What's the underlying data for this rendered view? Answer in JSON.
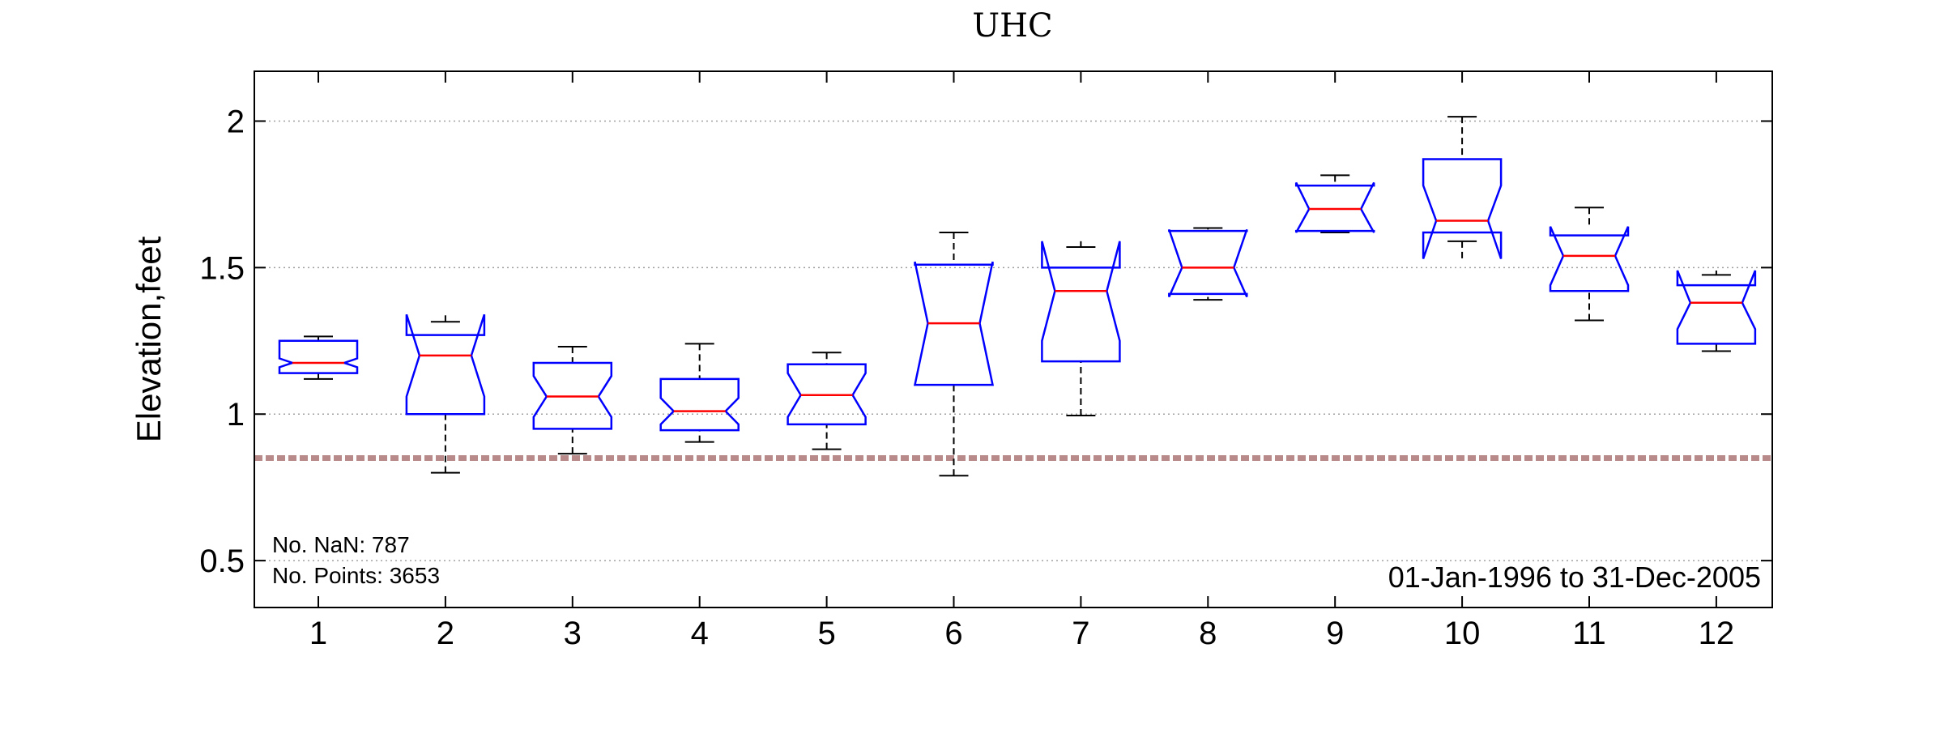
{
  "chart_data": {
    "type": "boxplot",
    "title": "UHC",
    "xlabel": "",
    "ylabel": "Elevation,feet",
    "ylim": [
      0.34,
      2.17
    ],
    "yticks": [
      "0.5",
      "1",
      "1.5",
      "2"
    ],
    "ytick_values": [
      0.5,
      1,
      1.5,
      2
    ],
    "categories": [
      "1",
      "2",
      "3",
      "4",
      "5",
      "6",
      "7",
      "8",
      "9",
      "10",
      "11",
      "12"
    ],
    "boxes": [
      {
        "month": "1",
        "whisker_low": 1.12,
        "q1": 1.14,
        "median": 1.175,
        "q3": 1.25,
        "whisker_high": 1.265,
        "notch_low": 1.16,
        "notch_high": 1.19
      },
      {
        "month": "2",
        "whisker_low": 0.8,
        "q1": 1.0,
        "median": 1.2,
        "q3": 1.27,
        "whisker_high": 1.315,
        "notch_low": 1.06,
        "notch_high": 1.34
      },
      {
        "month": "3",
        "whisker_low": 0.865,
        "q1": 0.95,
        "median": 1.06,
        "q3": 1.175,
        "whisker_high": 1.23,
        "notch_low": 0.99,
        "notch_high": 1.13
      },
      {
        "month": "4",
        "whisker_low": 0.905,
        "q1": 0.945,
        "median": 1.01,
        "q3": 1.12,
        "whisker_high": 1.24,
        "notch_low": 0.965,
        "notch_high": 1.055
      },
      {
        "month": "5",
        "whisker_low": 0.88,
        "q1": 0.965,
        "median": 1.065,
        "q3": 1.17,
        "whisker_high": 1.21,
        "notch_low": 0.99,
        "notch_high": 1.14
      },
      {
        "month": "6",
        "whisker_low": 0.79,
        "q1": 1.1,
        "median": 1.31,
        "q3": 1.51,
        "whisker_high": 1.62,
        "notch_low": 1.1,
        "notch_high": 1.52
      },
      {
        "month": "7",
        "whisker_low": 0.995,
        "q1": 1.18,
        "median": 1.42,
        "q3": 1.5,
        "whisker_high": 1.57,
        "notch_low": 1.25,
        "notch_high": 1.59
      },
      {
        "month": "8",
        "whisker_low": 1.39,
        "q1": 1.41,
        "median": 1.5,
        "q3": 1.625,
        "whisker_high": 1.635,
        "notch_low": 1.4,
        "notch_high": 1.63
      },
      {
        "month": "9",
        "whisker_low": 1.62,
        "q1": 1.625,
        "median": 1.7,
        "q3": 1.78,
        "whisker_high": 1.815,
        "notch_low": 1.62,
        "notch_high": 1.79
      },
      {
        "month": "10",
        "whisker_low": 1.59,
        "q1": 1.62,
        "median": 1.66,
        "q3": 1.87,
        "whisker_high": 2.015,
        "notch_low": 1.53,
        "notch_high": 1.78
      },
      {
        "month": "11",
        "whisker_low": 1.32,
        "q1": 1.42,
        "median": 1.54,
        "q3": 1.61,
        "whisker_high": 1.705,
        "notch_low": 1.44,
        "notch_high": 1.64
      },
      {
        "month": "12",
        "whisker_low": 1.215,
        "q1": 1.24,
        "median": 1.38,
        "q3": 1.44,
        "whisker_high": 1.475,
        "notch_low": 1.29,
        "notch_high": 1.49
      }
    ],
    "reference_line": {
      "value": 0.85,
      "style": "dashed",
      "color": "#b98a8a"
    },
    "grid": "horizontal dotted",
    "notes": {
      "nan_count": "No. NaN: 787",
      "point_count": "No. Points: 3653",
      "date_range": "01-Jan-1996 to 31-Dec-2005"
    },
    "colors": {
      "box": "#0000ff",
      "median": "#ff0000",
      "whisker": "#000000",
      "grid": "#a0a0a0"
    }
  }
}
